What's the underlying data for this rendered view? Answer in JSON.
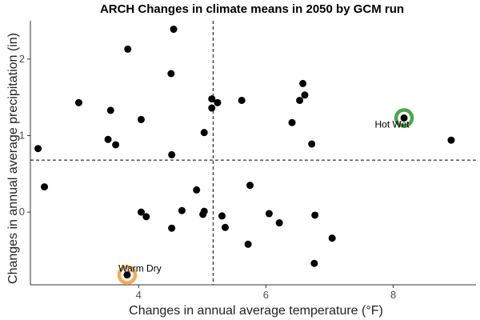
{
  "chart_data": {
    "type": "scatter",
    "title": "ARCH Changes in climate means in 2050 by GCM run",
    "xlabel": "Changes in annual average temperature (°F)",
    "ylabel": "Changes in annual average precipitation (in)",
    "xlim": [
      2.3,
      9.3
    ],
    "ylim": [
      -0.95,
      2.5
    ],
    "xticks": [
      4,
      6,
      8
    ],
    "yticks": [
      0,
      1,
      2
    ],
    "grid": false,
    "reference_lines": {
      "x": 5.17,
      "y": 0.68
    },
    "points": [
      {
        "x": 4.55,
        "y": 2.39
      },
      {
        "x": 3.83,
        "y": 2.13
      },
      {
        "x": 4.51,
        "y": 1.81
      },
      {
        "x": 6.58,
        "y": 1.68
      },
      {
        "x": 6.61,
        "y": 1.53
      },
      {
        "x": 6.53,
        "y": 1.46
      },
      {
        "x": 5.62,
        "y": 1.46
      },
      {
        "x": 5.15,
        "y": 1.48
      },
      {
        "x": 5.24,
        "y": 1.43
      },
      {
        "x": 5.15,
        "y": 1.36
      },
      {
        "x": 3.06,
        "y": 1.43
      },
      {
        "x": 3.56,
        "y": 1.33
      },
      {
        "x": 4.04,
        "y": 1.21
      },
      {
        "x": 6.41,
        "y": 1.17
      },
      {
        "x": 8.17,
        "y": 1.23
      },
      {
        "x": 5.03,
        "y": 1.04
      },
      {
        "x": 3.52,
        "y": 0.95
      },
      {
        "x": 3.64,
        "y": 0.88
      },
      {
        "x": 6.72,
        "y": 0.89
      },
      {
        "x": 8.91,
        "y": 0.94
      },
      {
        "x": 2.42,
        "y": 0.83
      },
      {
        "x": 4.52,
        "y": 0.75
      },
      {
        "x": 2.52,
        "y": 0.33
      },
      {
        "x": 5.75,
        "y": 0.35
      },
      {
        "x": 4.91,
        "y": 0.29
      },
      {
        "x": 4.04,
        "y": 0.0
      },
      {
        "x": 4.12,
        "y": -0.06
      },
      {
        "x": 4.68,
        "y": 0.02
      },
      {
        "x": 5.03,
        "y": 0.01
      },
      {
        "x": 5.01,
        "y": -0.03
      },
      {
        "x": 5.31,
        "y": -0.05
      },
      {
        "x": 6.05,
        "y": -0.02
      },
      {
        "x": 6.77,
        "y": -0.04
      },
      {
        "x": 6.21,
        "y": -0.14
      },
      {
        "x": 5.36,
        "y": -0.2
      },
      {
        "x": 4.52,
        "y": -0.21
      },
      {
        "x": 7.04,
        "y": -0.34
      },
      {
        "x": 5.72,
        "y": -0.42
      },
      {
        "x": 6.76,
        "y": -0.67
      },
      {
        "x": 3.82,
        "y": -0.82
      }
    ],
    "highlighted": [
      {
        "label": "Hot Wet",
        "x": 8.17,
        "y": 1.23,
        "color": "#4aa84a"
      },
      {
        "label": "Warm Dry",
        "x": 3.82,
        "y": -0.82,
        "color": "#f5a95c"
      }
    ]
  }
}
